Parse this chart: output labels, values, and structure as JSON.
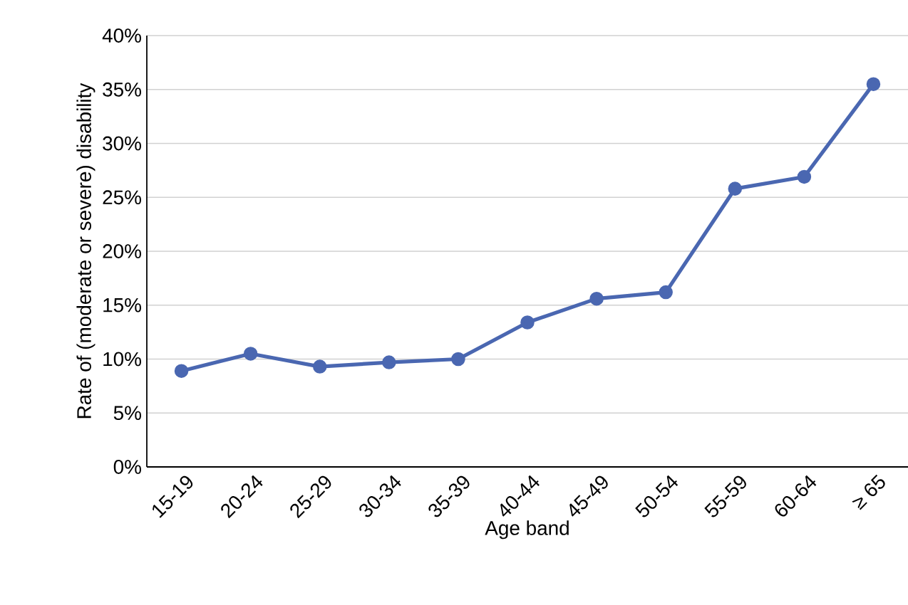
{
  "chart_data": {
    "type": "line",
    "xlabel": "Age band",
    "ylabel": "Rate of (moderate or severe) disability",
    "categories": [
      "15-19",
      "20-24",
      "25-29",
      "30-34",
      "35-39",
      "40-44",
      "45-49",
      "50-54",
      "55-59",
      "60-64",
      "≥ 65"
    ],
    "series": [
      {
        "color": "#4a67b1",
        "values": [
          8.9,
          10.5,
          9.3,
          9.7,
          10.0,
          13.4,
          15.6,
          16.2,
          25.8,
          26.9,
          35.5
        ]
      }
    ],
    "ylim": [
      0,
      40
    ],
    "yticks": [
      {
        "value": 0,
        "label": "0%"
      },
      {
        "value": 5,
        "label": "5%"
      },
      {
        "value": 10,
        "label": "10%"
      },
      {
        "value": 15,
        "label": "15%"
      },
      {
        "value": 20,
        "label": "20%"
      },
      {
        "value": 25,
        "label": "25%"
      },
      {
        "value": 30,
        "label": "30%"
      },
      {
        "value": 35,
        "label": "35%"
      },
      {
        "value": 40,
        "label": "40%"
      }
    ],
    "grid": "y",
    "marker": "circle",
    "line_style": "solid"
  }
}
